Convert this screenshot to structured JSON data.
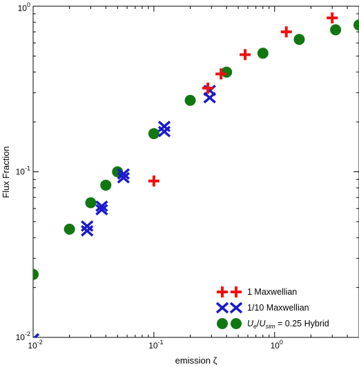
{
  "chart_data": {
    "type": "scatter",
    "title": "",
    "xlabel": "emission ζ",
    "ylabel": "Flux Fraction",
    "xscale": "log",
    "yscale": "log",
    "xlim": [
      0.01,
      5
    ],
    "ylim": [
      0.01,
      1
    ],
    "grid": false,
    "legend_position": "bottom-right",
    "x_ticks": [
      {
        "value": 0.01,
        "base": "10",
        "exp": "-2"
      },
      {
        "value": 0.1,
        "base": "10",
        "exp": "-1"
      },
      {
        "value": 1,
        "base": "10",
        "exp": "0"
      }
    ],
    "y_ticks": [
      {
        "value": 0.01,
        "base": "10",
        "exp": "-2"
      },
      {
        "value": 0.1,
        "base": "10",
        "exp": "-1"
      },
      {
        "value": 1,
        "base": "10",
        "exp": "0"
      }
    ],
    "series": [
      {
        "name": "1 Maxwellian",
        "marker": "plus",
        "color": "#ee1111",
        "points": [
          {
            "x": 0.1,
            "y": 0.088
          },
          {
            "x": 0.28,
            "y": 0.32
          },
          {
            "x": 0.36,
            "y": 0.39
          },
          {
            "x": 0.57,
            "y": 0.51
          },
          {
            "x": 1.25,
            "y": 0.7
          },
          {
            "x": 3.0,
            "y": 0.85
          }
        ]
      },
      {
        "name": "1/10 Maxwellian",
        "marker": "x",
        "color": "#1a1acc",
        "points": [
          {
            "x": 0.01,
            "y": 0.0098
          },
          {
            "x": 0.028,
            "y": 0.044
          },
          {
            "x": 0.028,
            "y": 0.047
          },
          {
            "x": 0.037,
            "y": 0.059
          },
          {
            "x": 0.037,
            "y": 0.062
          },
          {
            "x": 0.056,
            "y": 0.092
          },
          {
            "x": 0.056,
            "y": 0.097
          },
          {
            "x": 0.122,
            "y": 0.175
          },
          {
            "x": 0.122,
            "y": 0.188
          },
          {
            "x": 0.29,
            "y": 0.28
          },
          {
            "x": 0.29,
            "y": 0.31
          }
        ]
      },
      {
        "name_math": {
          "num": "U",
          "num_sub": "e",
          "den": "U",
          "den_sub": "sim"
        },
        "name_suffix": " = 0.25 Hybrid",
        "marker": "circle",
        "color": "#117711",
        "points": [
          {
            "x": 0.01,
            "y": 0.024
          },
          {
            "x": 0.02,
            "y": 0.045
          },
          {
            "x": 0.03,
            "y": 0.065
          },
          {
            "x": 0.04,
            "y": 0.083
          },
          {
            "x": 0.05,
            "y": 0.1
          },
          {
            "x": 0.1,
            "y": 0.17
          },
          {
            "x": 0.2,
            "y": 0.27
          },
          {
            "x": 0.4,
            "y": 0.4
          },
          {
            "x": 0.8,
            "y": 0.52
          },
          {
            "x": 1.6,
            "y": 0.63
          },
          {
            "x": 3.2,
            "y": 0.72
          },
          {
            "x": 5.0,
            "y": 0.77
          }
        ]
      }
    ]
  }
}
